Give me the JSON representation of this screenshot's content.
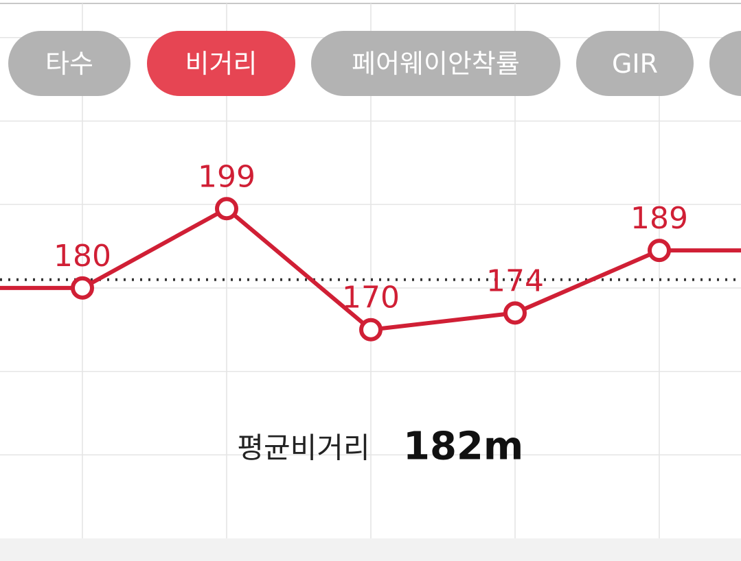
{
  "tabs": [
    {
      "label": "타수",
      "active": false
    },
    {
      "label": "비거리",
      "active": true
    },
    {
      "label": "페어웨이안착률",
      "active": false
    },
    {
      "label": "GIR",
      "active": false
    },
    {
      "label": null,
      "active": false
    }
  ],
  "chart_data": {
    "type": "line",
    "categories": [
      null,
      null,
      null,
      null,
      null
    ],
    "series": [
      {
        "name": null,
        "color": "#d01f35",
        "values": [
          180,
          199,
          170,
          174,
          189
        ]
      }
    ],
    "ylim": [
      120,
      249
    ],
    "yticks": [
      140,
      160,
      180,
      200,
      220,
      240
    ],
    "grid": true,
    "average": {
      "label": "평균비거리",
      "value": 182,
      "value_label": "182m"
    }
  }
}
